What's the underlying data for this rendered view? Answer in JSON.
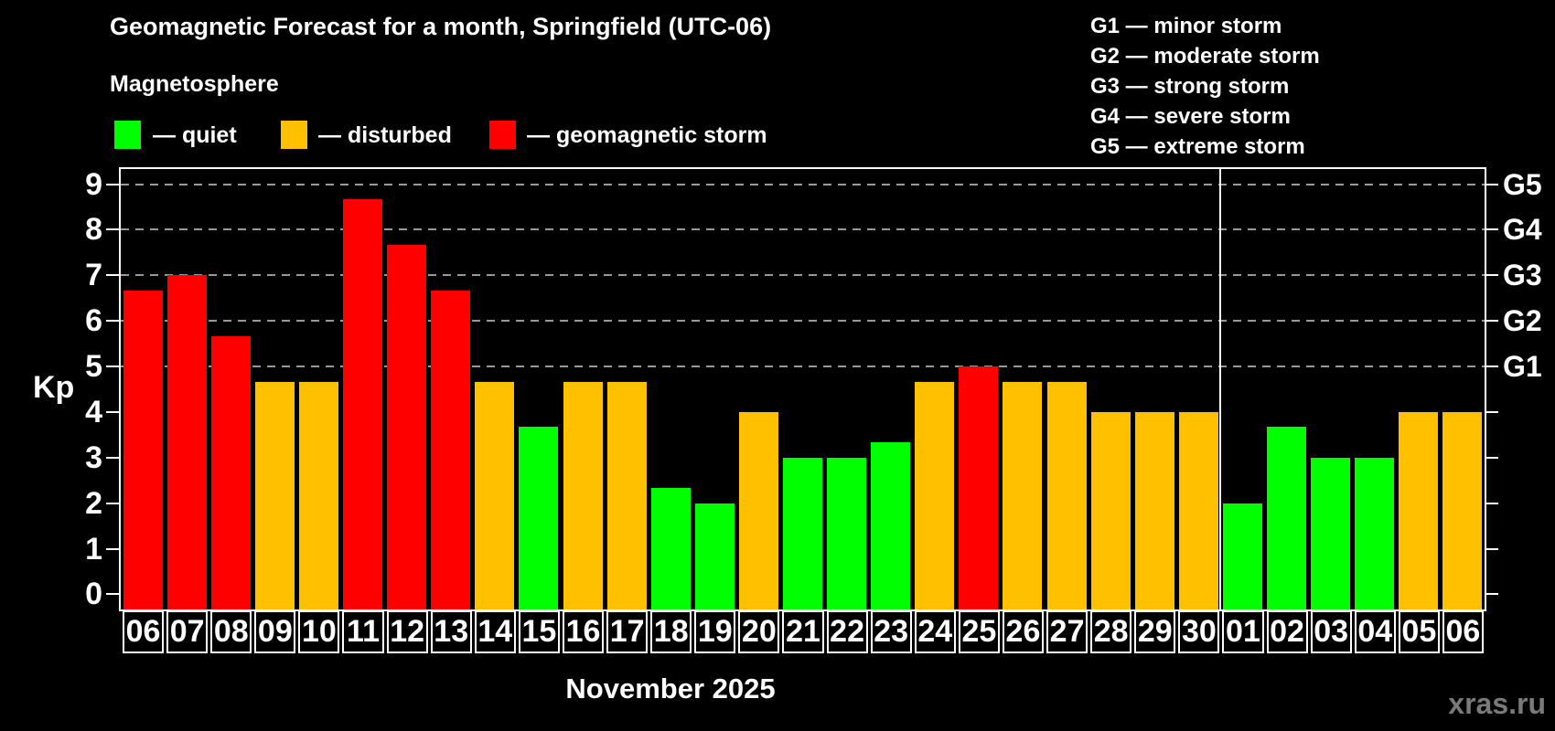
{
  "header": {
    "title": "Geomagnetic Forecast for a month, Springfield (UTC-06)",
    "subtitle": "Magnetosphere"
  },
  "legend": {
    "items": [
      {
        "name": "quiet",
        "label": "— quiet",
        "color": "#00ff00"
      },
      {
        "name": "disturbed",
        "label": "— disturbed",
        "color": "#ffc000"
      },
      {
        "name": "geomagnetic-storm",
        "label": "— geomagnetic storm",
        "color": "#ff0000"
      }
    ]
  },
  "g_legend": {
    "lines": [
      "G1 — minor storm",
      "G2 — moderate storm",
      "G3 — strong storm",
      "G4 — severe storm",
      "G5 — extreme storm"
    ]
  },
  "axis": {
    "y_label": "Kp",
    "x_label": "November 2025"
  },
  "watermark": "xras.ru",
  "chart_data": {
    "type": "bar",
    "title": "Geomagnetic Forecast for a month, Springfield (UTC-06)",
    "subtitle": "Magnetosphere",
    "xlabel": "November 2025",
    "ylabel": "Kp",
    "ylim": [
      -0.333,
      9.333
    ],
    "yticks": [
      0,
      1,
      2,
      3,
      4,
      5,
      6,
      7,
      8,
      9
    ],
    "gridlines": [
      5,
      6,
      7,
      8,
      9
    ],
    "grid_on": true,
    "legend_position": "top",
    "right_axis": [
      {
        "label": "G1",
        "value": 5
      },
      {
        "label": "G2",
        "value": 6
      },
      {
        "label": "G3",
        "value": 7
      },
      {
        "label": "G4",
        "value": 8
      },
      {
        "label": "G5",
        "value": 9
      }
    ],
    "month_separator_index": 25,
    "categories": [
      "06",
      "07",
      "08",
      "09",
      "10",
      "11",
      "12",
      "13",
      "14",
      "15",
      "16",
      "17",
      "18",
      "19",
      "20",
      "21",
      "22",
      "23",
      "24",
      "25",
      "26",
      "27",
      "28",
      "29",
      "30",
      "01",
      "02",
      "03",
      "04",
      "05",
      "06"
    ],
    "values": [
      6.67,
      7.0,
      5.67,
      4.67,
      4.67,
      8.67,
      7.67,
      6.67,
      4.67,
      3.67,
      4.67,
      4.67,
      2.33,
      2.0,
      4.0,
      3.0,
      3.0,
      3.33,
      4.67,
      5.0,
      4.67,
      4.67,
      4.0,
      4.0,
      4.0,
      2.0,
      3.67,
      3.0,
      3.0,
      4.0,
      4.0
    ],
    "statuses": [
      "storm",
      "storm",
      "storm",
      "disturbed",
      "disturbed",
      "storm",
      "storm",
      "storm",
      "disturbed",
      "quiet",
      "disturbed",
      "disturbed",
      "quiet",
      "quiet",
      "disturbed",
      "quiet",
      "quiet",
      "quiet",
      "disturbed",
      "storm",
      "disturbed",
      "disturbed",
      "disturbed",
      "disturbed",
      "disturbed",
      "quiet",
      "quiet",
      "quiet",
      "quiet",
      "disturbed",
      "disturbed"
    ],
    "status_colors": {
      "quiet": "#00ff00",
      "disturbed": "#ffc000",
      "storm": "#ff0000"
    }
  }
}
